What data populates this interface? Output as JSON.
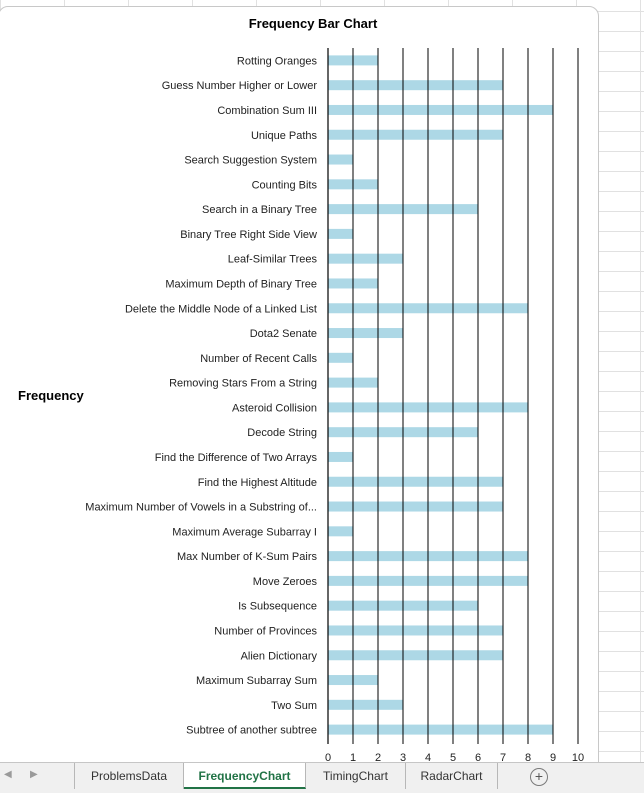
{
  "chart_data": {
    "type": "bar",
    "orientation": "horizontal",
    "title": "Frequency Bar Chart",
    "ylabel": "Frequency",
    "xlabel": "",
    "xlim": [
      0,
      10
    ],
    "x_ticks": [
      "0",
      "1",
      "2",
      "3",
      "4",
      "5",
      "6",
      "7",
      "8",
      "9",
      "10"
    ],
    "grid": "vertical",
    "legend": "none",
    "bar_color": "#add8e6",
    "categories": [
      "Rotting Oranges",
      "Guess Number Higher or Lower",
      "Combination Sum III",
      "Unique Paths",
      "Search Suggestion System",
      "Counting Bits",
      "Search in a Binary Tree",
      "Binary Tree Right Side View",
      "Leaf-Similar Trees",
      "Maximum Depth of Binary Tree",
      "Delete the Middle Node of a Linked List",
      "Dota2 Senate",
      "Number of Recent Calls",
      "Removing Stars From a String",
      "Asteroid Collision",
      "Decode String",
      "Find the Difference of Two Arrays",
      "Find the Highest Altitude",
      "Maximum Number of Vowels in a Substring of...",
      "Maximum Average Subarray I",
      "Max Number of K-Sum Pairs",
      "Move Zeroes",
      "Is Subsequence",
      "Number of Provinces",
      "Alien Dictionary",
      "Maximum Subarray Sum",
      "Two Sum",
      "Subtree of another subtree"
    ],
    "values": [
      2,
      7,
      9,
      7,
      1,
      2,
      6,
      1,
      3,
      2,
      8,
      3,
      1,
      2,
      8,
      6,
      1,
      7,
      7,
      1,
      8,
      8,
      6,
      7,
      7,
      2,
      3,
      9
    ]
  },
  "sheet_tabs": [
    {
      "label": "ProblemsData",
      "active": false
    },
    {
      "label": "FrequencyChart",
      "active": true
    },
    {
      "label": "TimingChart",
      "active": false
    },
    {
      "label": "RadarChart",
      "active": false
    }
  ],
  "tab_nav": {
    "prev": "◀",
    "next": "▶",
    "add": "+"
  }
}
